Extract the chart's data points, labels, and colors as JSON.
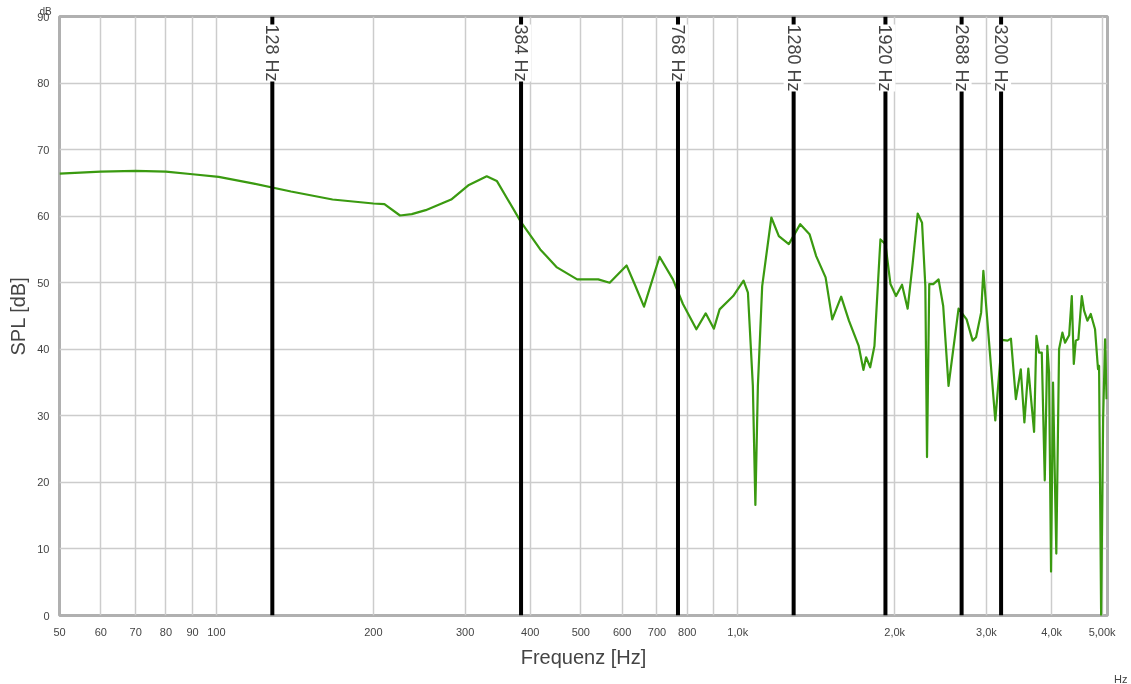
{
  "chart_data": {
    "type": "line",
    "xlabel": "Frequenz [Hz]",
    "ylabel": "SPL [dB]",
    "annotations": [
      "dB",
      "Hz"
    ],
    "log": "x",
    "grid": true,
    "marker": "none",
    "line_style": "solid",
    "xlim": [
      50,
      5120
    ],
    "ylim": [
      0,
      90
    ],
    "xticks": [
      50,
      60,
      70,
      80,
      90,
      100,
      200,
      300,
      400,
      500,
      600,
      700,
      800,
      {
        "value": 900,
        "label": null
      },
      {
        "value": 1000,
        "label": "1,0k"
      },
      {
        "value": 2000,
        "label": "2,0k"
      },
      {
        "value": 3000,
        "label": "3,0k"
      },
      {
        "value": 4000,
        "label": "4,0k"
      },
      {
        "value": 5000,
        "label": "5,00k"
      }
    ],
    "yticks": [
      0,
      10,
      20,
      30,
      40,
      50,
      60,
      70,
      80,
      90
    ],
    "ref_lines": [
      {
        "axis": "x",
        "value": 128,
        "label": "128 Hz",
        "color": "#000000"
      },
      {
        "axis": "x",
        "value": 384,
        "label": "384 Hz",
        "color": "#000000"
      },
      {
        "axis": "x",
        "value": 768,
        "label": "768 Hz",
        "color": "#000000"
      },
      {
        "axis": "x",
        "value": 1280,
        "label": "1280 Hz",
        "color": "#000000"
      },
      {
        "axis": "x",
        "value": 1920,
        "label": "1920 Hz",
        "color": "#000000"
      },
      {
        "axis": "x",
        "value": 2688,
        "label": "2688 Hz",
        "color": "#000000"
      },
      {
        "axis": "x",
        "value": 3200,
        "label": "3200 Hz",
        "color": "#000000"
      }
    ],
    "series": [
      {
        "color": "#3a9a10",
        "x": [
          50,
          60,
          70,
          80,
          90,
          101,
          118,
          139,
          167,
          200,
          210,
          225,
          237,
          252,
          282,
          305,
          330,
          345,
          384,
          418,
          450,
          492,
          540,
          568,
          612,
          634,
          661,
          708,
          751,
          785,
          833,
          868,
          900,
          923,
          980,
          1026,
          1046,
          1069,
          1081,
          1093,
          1114,
          1160,
          1199,
          1253,
          1318,
          1373,
          1414,
          1474,
          1518,
          1579,
          1634,
          1706,
          1742,
          1763,
          1795,
          1829,
          1878,
          1920,
          1963,
          2012,
          2066,
          2118,
          2166,
          2214,
          2257,
          2290,
          2307,
          2330,
          2372,
          2428,
          2478,
          2537,
          2652,
          2748,
          2822,
          2865,
          2930,
          2959,
          3003,
          3119,
          3212,
          3293,
          3342,
          3416,
          3491,
          3547,
          3609,
          3702,
          3740,
          3785,
          3830,
          3881,
          3925,
          3955,
          3990,
          4025,
          4084,
          4134,
          4195,
          4245,
          4322,
          4373,
          4412,
          4451,
          4502,
          4570,
          4617,
          4685,
          4755,
          4846,
          4910,
          4933,
          4978,
          5022,
          5066,
          5100
        ],
        "values": [
          66.4,
          66.7,
          66.8,
          66.7,
          66.3,
          65.9,
          64.9,
          63.7,
          62.5,
          61.9,
          61.8,
          60.1,
          60.3,
          60.9,
          62.5,
          64.7,
          66.0,
          65.3,
          59.1,
          55.0,
          52.3,
          50.5,
          50.5,
          50.0,
          52.6,
          49.8,
          46.4,
          53.9,
          50.5,
          46.8,
          43.0,
          45.4,
          43.1,
          46.0,
          48.0,
          50.3,
          48.5,
          34.5,
          16.6,
          34.5,
          49.5,
          59.8,
          57.0,
          55.8,
          58.8,
          57.3,
          54.0,
          50.8,
          44.5,
          47.9,
          44.3,
          40.5,
          36.9,
          38.8,
          37.3,
          40.5,
          56.5,
          55.8,
          49.8,
          48.0,
          49.7,
          46.1,
          53.0,
          60.4,
          59.0,
          49.5,
          23.8,
          49.8,
          49.8,
          50.5,
          46.5,
          34.5,
          46.1,
          44.5,
          41.3,
          41.8,
          45.5,
          51.8,
          45.5,
          29.3,
          41.4,
          41.3,
          41.6,
          32.5,
          37.0,
          29.0,
          37.1,
          27.6,
          42.0,
          39.5,
          39.5,
          20.3,
          40.5,
          36.5,
          6.6,
          35.0,
          9.3,
          40.0,
          42.5,
          41.0,
          42.1,
          48.0,
          37.8,
          41.3,
          41.5,
          48.0,
          45.8,
          44.3,
          45.3,
          43.0,
          37.0,
          37.5,
          0.0,
          29.5,
          41.5,
          32.5
        ]
      }
    ]
  }
}
